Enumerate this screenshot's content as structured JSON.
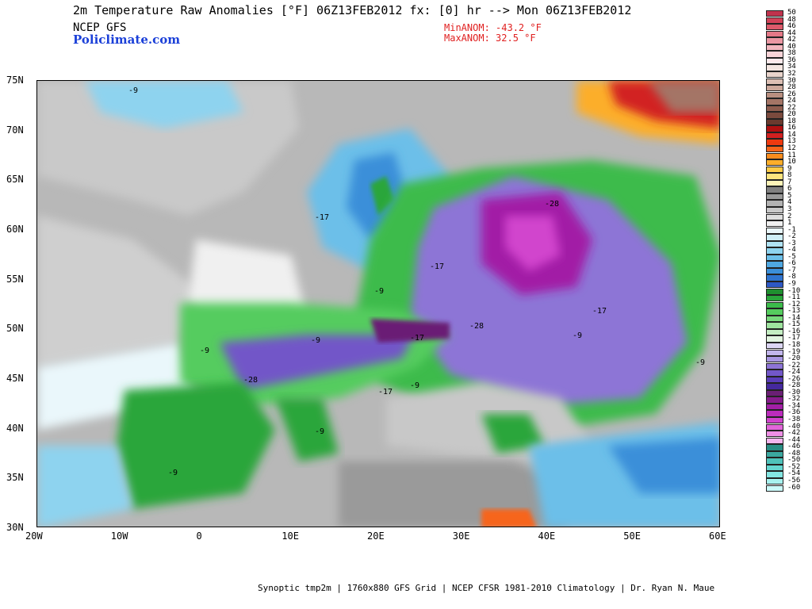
{
  "header": {
    "title": "2m Temperature Raw Anomalies [°F] 06Z13FEB2012 fx: [0] hr --> Mon 06Z13FEB2012",
    "model": "NCEP GFS",
    "site": "Policlimate.com",
    "min_anom": "MinANOM: -43.2 °F",
    "max_anom": "MaxANOM: 32.5 °F"
  },
  "footer": "Synoptic tmp2m | 1760x880 GFS Grid | NCEP CFSR 1981-2010 Climatology | Dr. Ryan N. Maue",
  "axes": {
    "lat_labels": [
      "75N",
      "70N",
      "65N",
      "60N",
      "55N",
      "50N",
      "45N",
      "40N",
      "35N",
      "30N"
    ],
    "lon_labels": [
      "20W",
      "10W",
      "0",
      "10E",
      "20E",
      "30E",
      "40E",
      "50E",
      "60E"
    ]
  },
  "map_labels": [
    "-9",
    "-17",
    "-28",
    "-17",
    "-28",
    "-9",
    "-17",
    "-9",
    "-9",
    "-9",
    "-28",
    "-17",
    "-9",
    "-9",
    "-17",
    "-9",
    "-9"
  ],
  "colorbar": {
    "labels": [
      "50",
      "48",
      "46",
      "44",
      "42",
      "40",
      "38",
      "36",
      "34",
      "32",
      "30",
      "28",
      "26",
      "24",
      "22",
      "20",
      "18",
      "16",
      "14",
      "13",
      "12",
      "11",
      "10",
      "9",
      "8",
      "7",
      "6",
      "5",
      "4",
      "3",
      "2",
      "1",
      "-1",
      "-2",
      "-3",
      "-4",
      "-5",
      "-6",
      "-7",
      "-8",
      "-9",
      "-10",
      "-11",
      "-12",
      "-13",
      "-14",
      "-15",
      "-16",
      "-17",
      "-18",
      "-19",
      "-20",
      "-22",
      "-24",
      "-26",
      "-28",
      "-30",
      "-32",
      "-34",
      "-36",
      "-38",
      "-40",
      "-42",
      "-44",
      "-46",
      "-48",
      "-50",
      "-52",
      "-54",
      "-56",
      "-60"
    ],
    "colors": [
      "#c0334d",
      "#d24258",
      "#dd5a6b",
      "#e47887",
      "#eb97a3",
      "#f2b6be",
      "#f8d4d8",
      "#fdeaec",
      "#f4e6e1",
      "#e9d4cc",
      "#dcbfb4",
      "#cca89b",
      "#b98f80",
      "#a47566",
      "#8e5d4f",
      "#7b4a3d",
      "#6a3a2e",
      "#b01010",
      "#d22020",
      "#ee3a10",
      "#f6651a",
      "#fa8c1e",
      "#fcae2a",
      "#fdcb48",
      "#fde47e",
      "#fdf3b8",
      "#808080",
      "#9a9a9a",
      "#b2b2b2",
      "#c8c8c8",
      "#dedede",
      "#f0f0f0",
      "#eaf7fb",
      "#cfeff8",
      "#b0e3f4",
      "#8ed3ef",
      "#6cbfe9",
      "#4fa8e2",
      "#3b8fd9",
      "#2f74cf",
      "#2e58c4",
      "#1f8f2f",
      "#2aa63b",
      "#3cbb4b",
      "#55cc5e",
      "#78d97c",
      "#9fe49f",
      "#c4eec2",
      "#e2f5e0",
      "#dcd6f3",
      "#c2b6ec",
      "#a896e2",
      "#8d74d6",
      "#7257c8",
      "#5a3db8",
      "#45299e",
      "#6a1f74",
      "#861c8c",
      "#a21fa6",
      "#bb2cbc",
      "#d144cd",
      "#e266da",
      "#ee8fe5",
      "#f4b6ee",
      "#2a8d84",
      "#3ba8a0",
      "#4fc2ba",
      "#66d6d0",
      "#84e6e2",
      "#a8f2ef",
      "#ccfafa"
    ]
  }
}
